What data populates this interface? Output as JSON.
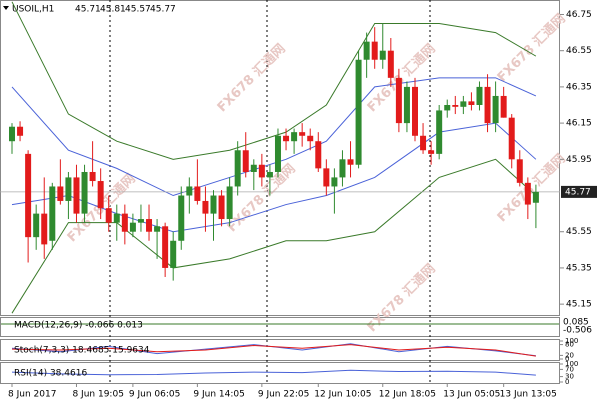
{
  "chart_data": {
    "type": "candlestick",
    "title": "USOIL,H1",
    "watermark": "FX678 汇通网",
    "bull_color": "#2f8a2f",
    "bear_color": "#e21b1b",
    "ylim": [
      45.09,
      46.83
    ],
    "yticks": [
      46.75,
      46.55,
      46.35,
      46.15,
      45.95,
      45.55,
      45.35,
      45.15
    ],
    "last_price": 45.77,
    "open": [
      46.05,
      46.13,
      45.98,
      45.52,
      45.65,
      45.5,
      45.8,
      45.72,
      45.85,
      45.65,
      45.88,
      45.83,
      45.68,
      45.6,
      45.65,
      45.55,
      45.6,
      45.62,
      45.55,
      45.58,
      45.35,
      45.5,
      45.75,
      45.8,
      45.72,
      45.65,
      45.75,
      45.62,
      45.8,
      46.0,
      45.88,
      45.92,
      45.85,
      45.88,
      46.08,
      46.05,
      46.1,
      46.08,
      46.05,
      45.9,
      45.8,
      45.85,
      45.95,
      45.92,
      46.5,
      46.6,
      46.5,
      46.55,
      46.4,
      46.15,
      46.35,
      46.08,
      46.0,
      45.98,
      46.22,
      46.25,
      46.24,
      46.27,
      46.25,
      46.35,
      46.15,
      46.3,
      46.18,
      45.95,
      45.82,
      45.71
    ],
    "high": [
      46.15,
      46.16,
      46.0,
      45.7,
      45.85,
      45.82,
      45.95,
      45.88,
      45.92,
      45.92,
      46.05,
      45.9,
      45.75,
      45.7,
      45.7,
      45.65,
      45.7,
      45.7,
      45.62,
      45.6,
      45.55,
      45.8,
      45.85,
      45.95,
      45.8,
      45.78,
      45.78,
      45.85,
      46.05,
      46.1,
      45.95,
      45.98,
      45.92,
      46.12,
      46.12,
      46.12,
      46.15,
      46.12,
      46.1,
      45.95,
      45.9,
      46.0,
      46.05,
      46.55,
      46.65,
      46.68,
      46.7,
      46.62,
      46.45,
      46.38,
      46.4,
      46.15,
      46.05,
      46.25,
      46.28,
      46.3,
      46.3,
      46.32,
      46.38,
      46.42,
      46.38,
      46.35,
      46.2,
      46.0,
      45.85,
      45.81
    ],
    "low": [
      45.98,
      46.05,
      45.38,
      45.45,
      45.4,
      45.45,
      45.7,
      45.62,
      45.6,
      45.6,
      45.8,
      45.62,
      45.55,
      45.5,
      45.48,
      45.52,
      45.55,
      45.5,
      45.4,
      45.3,
      45.28,
      45.45,
      45.65,
      45.7,
      45.55,
      45.5,
      45.58,
      45.58,
      45.75,
      45.85,
      45.78,
      45.8,
      45.75,
      45.85,
      46.0,
      45.98,
      46.02,
      46.0,
      45.88,
      45.75,
      45.65,
      45.8,
      45.85,
      45.9,
      46.4,
      46.45,
      46.45,
      46.35,
      46.1,
      46.1,
      46.05,
      45.98,
      45.92,
      45.95,
      46.18,
      46.2,
      46.2,
      46.22,
      46.22,
      46.1,
      46.1,
      46.18,
      45.9,
      45.8,
      45.62,
      45.57
    ],
    "close": [
      46.13,
      46.08,
      45.52,
      45.65,
      45.48,
      45.8,
      45.72,
      45.85,
      45.65,
      45.88,
      45.83,
      45.68,
      45.6,
      45.65,
      45.55,
      45.6,
      45.62,
      45.55,
      45.58,
      45.35,
      45.5,
      45.75,
      45.8,
      45.72,
      45.65,
      45.75,
      45.62,
      45.8,
      46.0,
      45.88,
      45.92,
      45.85,
      45.88,
      46.08,
      46.05,
      46.1,
      46.08,
      46.05,
      45.9,
      45.8,
      45.85,
      45.95,
      45.92,
      46.5,
      46.6,
      46.5,
      46.55,
      46.4,
      46.15,
      46.35,
      46.08,
      46.0,
      45.98,
      46.22,
      46.25,
      46.24,
      46.27,
      46.25,
      46.35,
      46.15,
      46.3,
      46.18,
      45.95,
      45.82,
      45.7,
      45.77
    ],
    "xlabels": [
      {
        "index": 0,
        "label": "8 Jun 2017"
      },
      {
        "index": 8,
        "label": "8 Jun 19:05"
      },
      {
        "index": 15,
        "label": "9 Jun 06:05"
      },
      {
        "index": 23,
        "label": "9 Jun 14:05"
      },
      {
        "index": 31,
        "label": "9 Jun 22:05"
      },
      {
        "index": 38,
        "label": "12 Jun 10:05"
      },
      {
        "index": 46,
        "label": "12 Jun 18:05"
      },
      {
        "index": 54,
        "label": "13 Jun 05:05"
      },
      {
        "index": 61,
        "label": "13 Jun 13:05"
      }
    ],
    "bands": [
      {
        "color": "#3a7a2a",
        "x": [
          0,
          7,
          13,
          20,
          27,
          34,
          39,
          45,
          53,
          60,
          65
        ],
        "values": [
          46.82,
          46.2,
          46.05,
          45.95,
          46.0,
          46.1,
          46.25,
          46.7,
          46.7,
          46.65,
          46.52
        ]
      },
      {
        "color": "#3a7a2a",
        "x": [
          0,
          7,
          13,
          20,
          27,
          34,
          39,
          45,
          53,
          60,
          65
        ],
        "values": [
          45.1,
          45.6,
          45.6,
          45.35,
          45.4,
          45.5,
          45.5,
          45.55,
          45.85,
          45.95,
          45.75
        ]
      },
      {
        "color": "#4a62d8",
        "x": [
          0,
          7,
          13,
          20,
          27,
          34,
          39,
          45,
          53,
          60,
          65
        ],
        "values": [
          46.35,
          46.0,
          45.9,
          45.75,
          45.85,
          45.95,
          46.05,
          46.35,
          46.4,
          46.4,
          46.3
        ]
      },
      {
        "color": "#4a62d8",
        "x": [
          0,
          7,
          13,
          20,
          27,
          34,
          39,
          45,
          53,
          60,
          65
        ],
        "values": [
          45.7,
          45.75,
          45.65,
          45.55,
          45.6,
          45.7,
          45.75,
          45.85,
          46.1,
          46.15,
          45.95
        ]
      }
    ],
    "macd": {
      "label": "MACD(12,26,9) -0.066 0.013",
      "scale": [
        0.085,
        -0.506
      ]
    },
    "stoch": {
      "label": "Stoch(7,3,3) 18.4685 15.9634",
      "ylim": [
        0,
        100
      ],
      "yticks": [
        100,
        80,
        20,
        0
      ],
      "x": [
        0,
        6,
        12,
        18,
        24,
        30,
        36,
        42,
        48,
        54,
        60,
        65
      ],
      "series": [
        {
          "color": "#4a62d8",
          "values": [
            60,
            40,
            70,
            30,
            55,
            80,
            50,
            85,
            40,
            70,
            45,
            18
          ]
        },
        {
          "color": "#e21b1b",
          "values": [
            55,
            50,
            60,
            40,
            50,
            75,
            60,
            80,
            50,
            65,
            50,
            16
          ]
        }
      ]
    },
    "rsi": {
      "label": "RSI(14) 38.4616",
      "ylim": [
        0,
        100
      ],
      "yticks": [
        100,
        70,
        30,
        0
      ],
      "x": [
        0,
        6,
        12,
        18,
        24,
        30,
        36,
        42,
        48,
        54,
        60,
        65
      ],
      "color": "#4a62d8",
      "values": [
        55,
        45,
        40,
        42,
        50,
        55,
        52,
        65,
        58,
        60,
        55,
        38
      ]
    }
  }
}
